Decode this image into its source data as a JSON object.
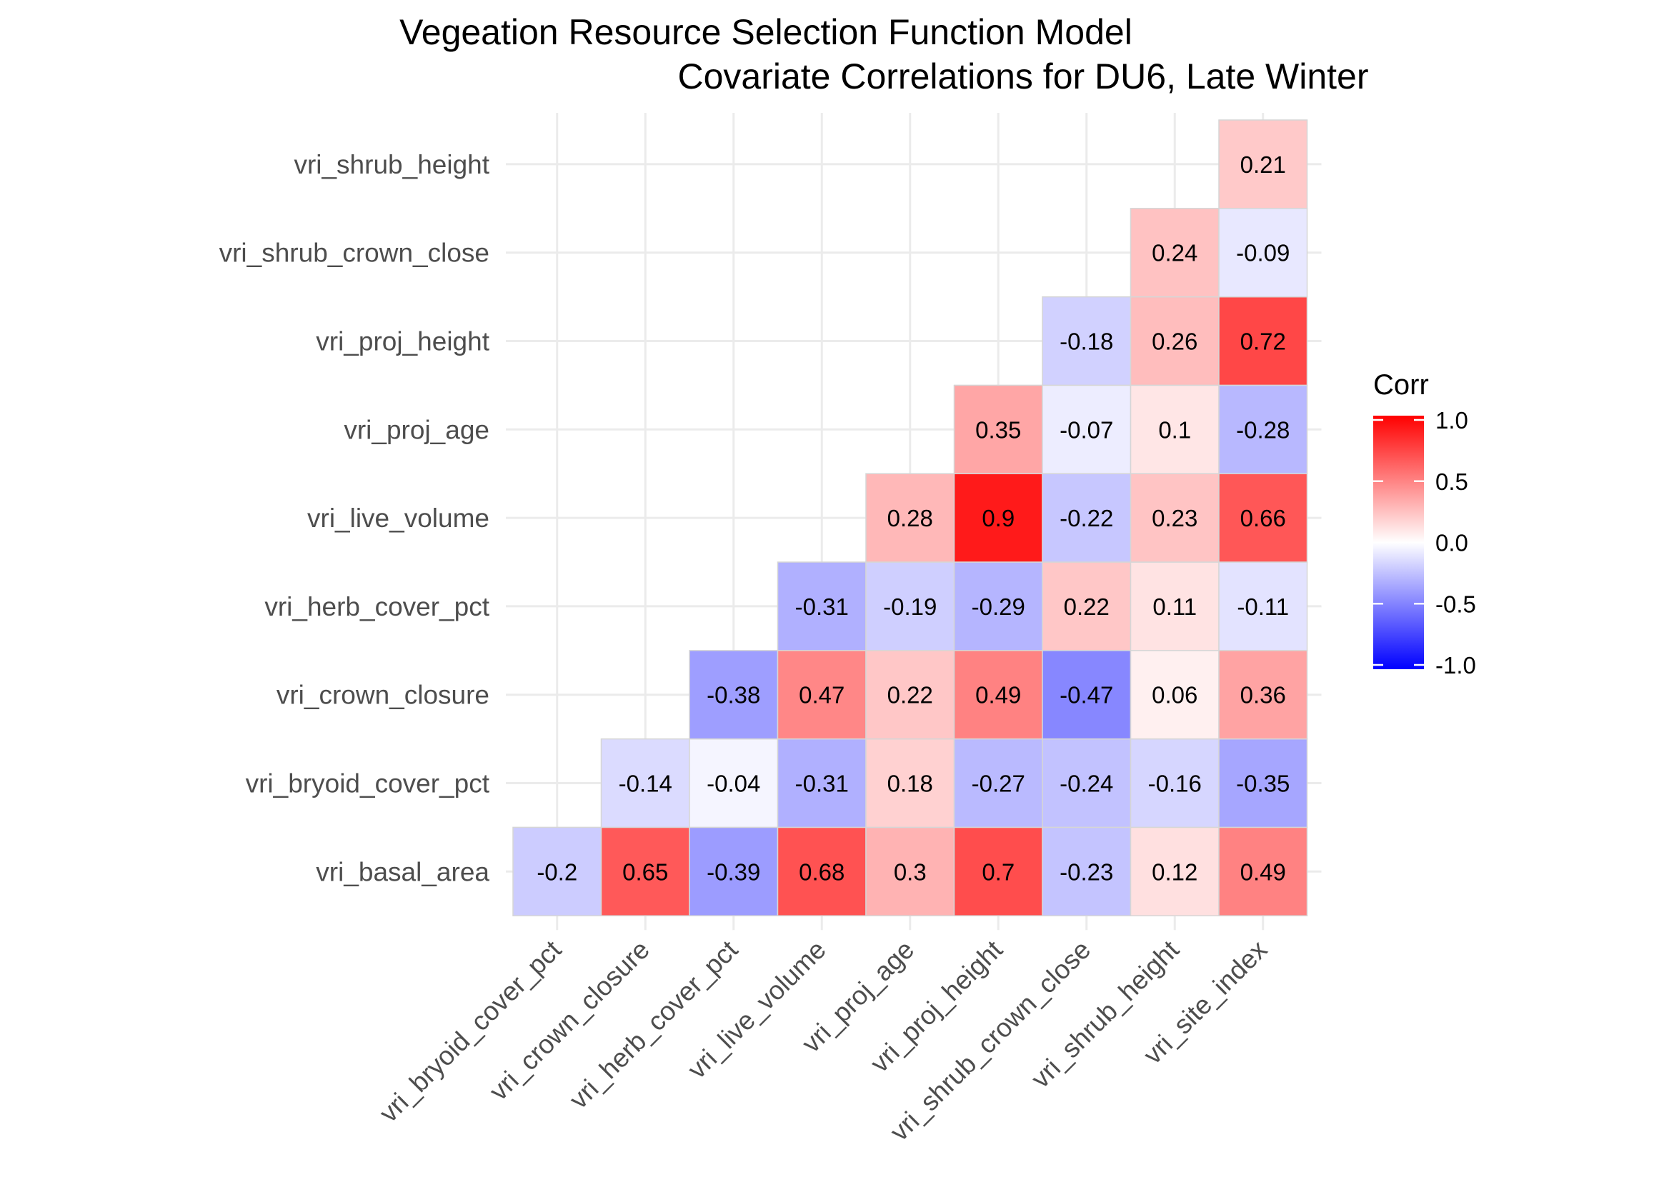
{
  "chart_data": {
    "type": "heatmap",
    "title": "Vegeation Resource Selection Function Model",
    "subtitle": "Covariate Correlations for DU6, Late Winter",
    "x_categories": [
      "vri_bryoid_cover_pct",
      "vri_crown_closure",
      "vri_herb_cover_pct",
      "vri_live_volume",
      "vri_proj_age",
      "vri_proj_height",
      "vri_shrub_crown_close",
      "vri_shrub_height",
      "vri_site_index"
    ],
    "y_categories": [
      "vri_basal_area",
      "vri_bryoid_cover_pct",
      "vri_crown_closure",
      "vri_herb_cover_pct",
      "vri_live_volume",
      "vri_proj_age",
      "vri_proj_height",
      "vri_shrub_crown_close",
      "vri_shrub_height"
    ],
    "values": [
      [
        -0.2,
        0.65,
        -0.39,
        0.68,
        0.3,
        0.7,
        -0.23,
        0.12,
        0.49
      ],
      [
        null,
        -0.14,
        -0.04,
        -0.31,
        0.18,
        -0.27,
        -0.24,
        -0.16,
        -0.35
      ],
      [
        null,
        null,
        -0.38,
        0.47,
        0.22,
        0.49,
        -0.47,
        0.06,
        0.36
      ],
      [
        null,
        null,
        null,
        -0.31,
        -0.19,
        -0.29,
        0.22,
        0.11,
        -0.11
      ],
      [
        null,
        null,
        null,
        null,
        0.28,
        0.9,
        -0.22,
        0.23,
        0.66
      ],
      [
        null,
        null,
        null,
        null,
        null,
        0.35,
        -0.07,
        0.1,
        -0.28
      ],
      [
        null,
        null,
        null,
        null,
        null,
        null,
        -0.18,
        0.26,
        0.72
      ],
      [
        null,
        null,
        null,
        null,
        null,
        null,
        null,
        0.24,
        -0.09
      ],
      [
        null,
        null,
        null,
        null,
        null,
        null,
        null,
        null,
        0.21
      ]
    ],
    "labels": [
      [
        "-0.2",
        "0.65",
        "-0.39",
        "0.68",
        "0.3",
        "0.7",
        "-0.23",
        "0.12",
        "0.49"
      ],
      [
        null,
        "-0.14",
        "-0.04",
        "-0.31",
        "0.18",
        "-0.27",
        "-0.24",
        "-0.16",
        "-0.35"
      ],
      [
        null,
        null,
        "-0.38",
        "0.47",
        "0.22",
        "0.49",
        "-0.47",
        "0.06",
        "0.36"
      ],
      [
        null,
        null,
        null,
        "-0.31",
        "-0.19",
        "-0.29",
        "0.22",
        "0.11",
        "-0.11"
      ],
      [
        null,
        null,
        null,
        null,
        "0.28",
        "0.9",
        "-0.22",
        "0.23",
        "0.66"
      ],
      [
        null,
        null,
        null,
        null,
        null,
        "0.35",
        "-0.07",
        "0.1",
        "-0.28"
      ],
      [
        null,
        null,
        null,
        null,
        null,
        null,
        "-0.18",
        "0.26",
        "0.72"
      ],
      [
        null,
        null,
        null,
        null,
        null,
        null,
        null,
        "0.24",
        "-0.09"
      ],
      [
        null,
        null,
        null,
        null,
        null,
        null,
        null,
        null,
        "0.21"
      ]
    ],
    "color_range": [
      -1,
      1
    ],
    "colors": {
      "low": "#0000ff",
      "mid": "#ffffff",
      "high": "#ff0000"
    },
    "legend": {
      "title": "Corr",
      "placement": "right",
      "ticks": [
        1.0,
        0.5,
        0.0,
        -0.5,
        -1.0
      ],
      "tick_labels": [
        "1.0",
        "0.5",
        "0.0",
        "-0.5",
        "-1.0"
      ]
    },
    "grid": true
  }
}
